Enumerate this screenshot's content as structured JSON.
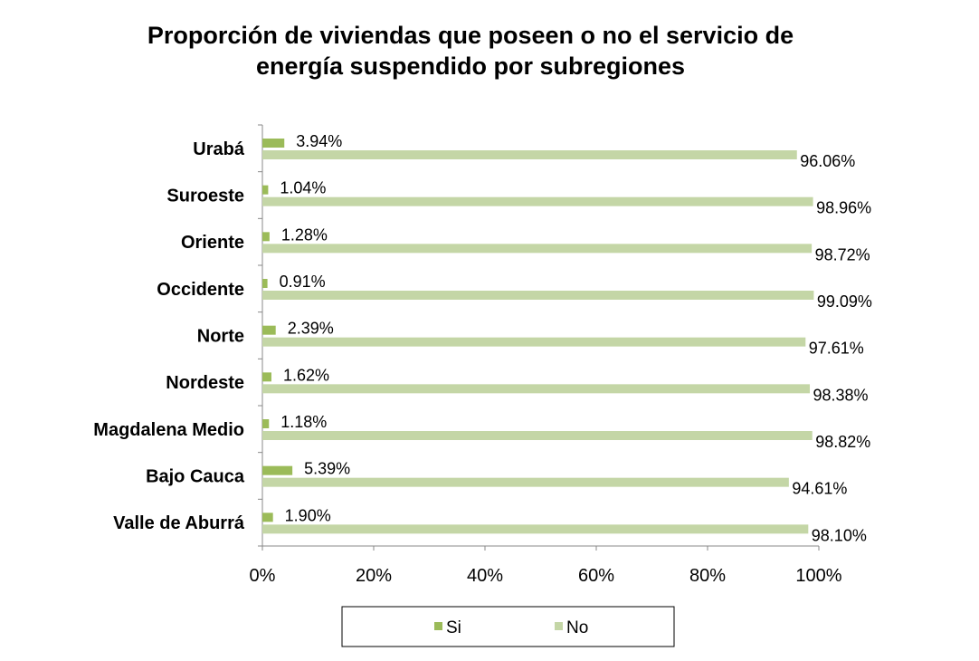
{
  "chart_data": {
    "type": "bar",
    "orientation": "horizontal",
    "title_lines": [
      "Proporción de viviendas que poseen o no el servicio de",
      "energía suspendido por subregiones"
    ],
    "categories": [
      "Urabá",
      "Suroeste",
      "Oriente",
      "Occidente",
      "Norte",
      "Nordeste",
      "Magdalena Medio",
      "Bajo Cauca",
      "Valle de Aburrá"
    ],
    "series": [
      {
        "name": "Si",
        "color": "#9bbb59",
        "values": [
          3.94,
          1.04,
          1.28,
          0.91,
          2.39,
          1.62,
          1.18,
          5.39,
          1.9
        ],
        "labels": [
          "3.94%",
          "1.04%",
          "1.28%",
          "0.91%",
          "2.39%",
          "1.62%",
          "1.18%",
          "5.39%",
          "1.90%"
        ]
      },
      {
        "name": "No",
        "color": "#c4d6a6",
        "values": [
          96.06,
          98.96,
          98.72,
          99.09,
          97.61,
          98.38,
          98.82,
          94.61,
          98.1
        ],
        "labels": [
          "96.06%",
          "98.96%",
          "98.72%",
          "99.09%",
          "97.61%",
          "98.38%",
          "98.82%",
          "94.61%",
          "98.10%"
        ]
      }
    ],
    "xlim": [
      0,
      100
    ],
    "x_ticks": [
      0,
      20,
      40,
      60,
      80,
      100
    ],
    "x_tick_labels": [
      "0%",
      "20%",
      "40%",
      "60%",
      "80%",
      "100%"
    ],
    "grid": false,
    "legend_position": "bottom"
  }
}
